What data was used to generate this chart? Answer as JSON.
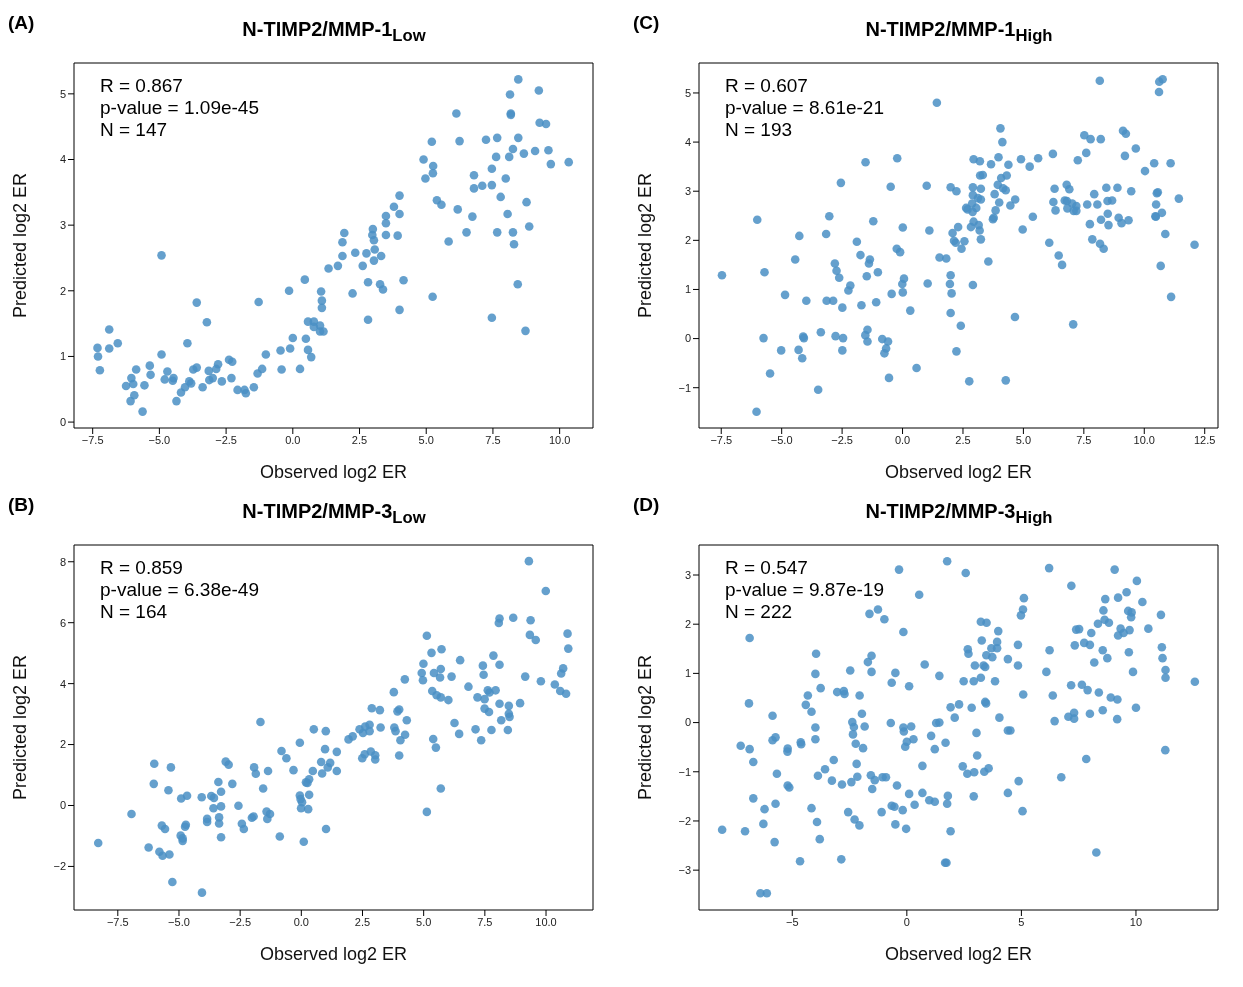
{
  "chart_data": [
    {
      "type": "scatter",
      "title": "N-TIMP2/MMP-1$_{Low}$",
      "xlabel": "Observed log2 ER",
      "ylabel": "Predicted log2 ER",
      "annotations": [
        "(A)",
        "R = 0.867",
        "p-value = 1.09e-45",
        "N = 147"
      ],
      "color": "#4a8fc4",
      "marker": "circle",
      "xlim": [
        -8.2,
        11.25
      ],
      "ylim": [
        -0.09,
        5.47
      ],
      "xticks": [
        {
          "value": -7.5,
          "label": "−7.5"
        },
        {
          "value": -5,
          "label": "−5.0"
        },
        {
          "value": -2.5,
          "label": "−2.5"
        },
        {
          "value": 0,
          "label": "0.0"
        },
        {
          "value": 2.5,
          "label": "2.5"
        },
        {
          "value": 5,
          "label": "5.0"
        },
        {
          "value": 7.5,
          "label": "7.5"
        },
        {
          "value": 10,
          "label": "10.0"
        }
      ],
      "yticks": [
        0,
        1,
        2,
        3,
        4,
        5
      ],
      "x": [
        8.45,
        9.22,
        8.14,
        8.17,
        8.17,
        6.13,
        9.25,
        9.49,
        5.21,
        6.25,
        7.24,
        7.66,
        8.45,
        8.25,
        9.58,
        9.08,
        8.66,
        7.62,
        8.11,
        4.9,
        10.34,
        9.67,
        5.26,
        5.25,
        7.46,
        6.79,
        4.97,
        7.98,
        6.79,
        7.1,
        7.46,
        4.0,
        7.79,
        5.4,
        5.57,
        8.76,
        3.79,
        6.18,
        3.49,
        4.0,
        6.73,
        8.05,
        3.49,
        8.86,
        3.0,
        1.93,
        2.98,
        3.49,
        3.93,
        6.51,
        7.66,
        8.25,
        3.04,
        5.84,
        1.86,
        8.29,
        3.07,
        2.34,
        2.76,
        1.86,
        3.31,
        3.04,
        1.69,
        2.62,
        1.34,
        -4.92,
        0.45,
        2.82,
        4.15,
        3.27,
        3.38,
        8.43,
        -0.14,
        1.06,
        2.24,
        5.24,
        -3.6,
        -1.28,
        1.09,
        1.09,
        4.0,
        2.82,
        7.46,
        -3.22,
        8.72,
        0.57,
        0.79,
        0.79,
        1.02,
        1.02,
        1.15,
        -6.88,
        -6.56,
        -3.95,
        0.0,
        0.49,
        -7.32,
        -6.88,
        -0.1,
        0.57,
        -0.46,
        -7.3,
        -4.92,
        -1.01,
        0.69,
        -7.23,
        -5.87,
        -5.36,
        -5.33,
        -4.7,
        -4.8,
        -4.47,
        -4.5,
        -6.05,
        -5.98,
        -6.25,
        -5.56,
        -5.94,
        -6.08,
        -5.63,
        -4.36,
        -4.19,
        -4.04,
        -3.88,
        -3.81,
        -3.73,
        -3.6,
        -3.38,
        -3.15,
        -3.13,
        -3.0,
        -2.87,
        -2.8,
        -2.66,
        -2.39,
        -2.27,
        -2.3,
        -2.07,
        -1.81,
        -1.76,
        -1.46,
        -1.32,
        -1.15,
        -0.42,
        0.27
      ],
      "values": [
        5.22,
        5.05,
        4.99,
        4.7,
        4.68,
        4.7,
        4.56,
        4.54,
        4.27,
        4.28,
        4.3,
        4.33,
        4.33,
        4.16,
        4.14,
        4.13,
        4.09,
        4.04,
        4.04,
        4.0,
        3.96,
        3.93,
        3.9,
        3.79,
        3.86,
        3.76,
        3.71,
        3.71,
        3.56,
        3.6,
        3.61,
        3.45,
        3.43,
        3.38,
        3.31,
        3.35,
        3.28,
        3.24,
        3.14,
        3.17,
        3.13,
        3.17,
        3.03,
        2.98,
        2.94,
        2.88,
        2.85,
        2.85,
        2.84,
        2.89,
        2.89,
        2.89,
        2.77,
        2.75,
        2.74,
        2.71,
        2.63,
        2.58,
        2.57,
        2.53,
        2.53,
        2.46,
        2.38,
        2.38,
        2.34,
        2.54,
        2.17,
        2.13,
        2.16,
        2.1,
        2.02,
        2.1,
        2.0,
        1.99,
        1.96,
        1.91,
        1.82,
        1.83,
        1.85,
        1.74,
        1.71,
        1.56,
        1.59,
        1.52,
        1.39,
        1.53,
        1.53,
        1.45,
        1.47,
        1.38,
        1.38,
        1.41,
        1.2,
        1.2,
        1.28,
        1.27,
        1.13,
        1.12,
        1.12,
        1.1,
        1.09,
        1.0,
        1.03,
        1.03,
        0.99,
        0.79,
        0.8,
        0.86,
        0.72,
        0.77,
        0.65,
        0.67,
        0.63,
        0.67,
        0.58,
        0.55,
        0.56,
        0.41,
        0.32,
        0.16,
        0.32,
        0.45,
        0.53,
        0.62,
        0.59,
        0.8,
        0.83,
        0.53,
        0.78,
        0.64,
        0.67,
        0.81,
        0.88,
        0.62,
        0.95,
        0.92,
        0.67,
        0.49,
        0.49,
        0.44,
        0.53,
        0.74,
        0.81,
        0.8,
        0.81
      ]
    },
    {
      "type": "scatter",
      "title": "N-TIMP2/MMP-1$_{High}$",
      "xlabel": "Observed log2 ER",
      "ylabel": "Predicted log2 ER",
      "annotations": [
        "(C)",
        "R = 0.607",
        "p-value = 8.61e-21",
        "N = 193"
      ],
      "color": "#4a8fc4",
      "marker": "circle",
      "xlim": [
        -8.42,
        13.05
      ],
      "ylim": [
        -1.82,
        5.61
      ],
      "xticks": [
        {
          "value": -7.5,
          "label": "−7.5"
        },
        {
          "value": -5,
          "label": "−5.0"
        },
        {
          "value": -2.5,
          "label": "−2.5"
        },
        {
          "value": 0,
          "label": "0.0"
        },
        {
          "value": 2.5,
          "label": "2.5"
        },
        {
          "value": 5,
          "label": "5.0"
        },
        {
          "value": 7.5,
          "label": "7.5"
        },
        {
          "value": 10,
          "label": "10.0"
        },
        {
          "value": 12.5,
          "label": "12.5"
        }
      ],
      "yticks": [
        {
          "value": -1,
          "label": "−1"
        },
        0,
        1,
        2,
        3,
        4,
        5
      ],
      "x": [
        8.16,
        10.76,
        10.62,
        10.61,
        1.42,
        4.05,
        4.13,
        9.12,
        9.24,
        7.52,
        7.78,
        8.2,
        9.65,
        7.6,
        6.22,
        9.2,
        -1.53,
        -0.22,
        2.94,
        3.2,
        3.97,
        3.66,
        4.38,
        4.9,
        5.26,
        5.61,
        7.25,
        10.41,
        11.09,
        10.03,
        3.21,
        3.32,
        4.08,
        4.31,
        -2.55,
        -0.49,
        1.0,
        1.99,
        2.23,
        2.91,
        3.24,
        3.94,
        4.16,
        4.27,
        6.29,
        6.79,
        6.9,
        8.43,
        8.89,
        9.46,
        7.93,
        10.52,
        10.56,
        2.91,
        3.12,
        3.24,
        3.81,
        4.66,
        11.43,
        2.88,
        6.24,
        6.71,
        6.8,
        7.02,
        7.19,
        7.64,
        8.06,
        8.48,
        8.67,
        10.49,
        4.0,
        2.63,
        2.69,
        3.05,
        2.9,
        4.46,
        6.33,
        6.82,
        7.08,
        7.19,
        8.49,
        10.73,
        3.85,
        3.77,
        3.74,
        5.39,
        10.46,
        10.48,
        8.94,
        9.35,
        8.21,
        9.06,
        7.75,
        8.52,
        2.94,
        3.15,
        2.83,
        3.19,
        2.3,
        -6.01,
        -3.03,
        -1.21,
        0.01,
        1.11,
        2.07,
        4.97,
        10.87,
        -4.27,
        -3.16,
        3.24,
        2.13,
        2.2,
        2.56,
        -1.89,
        6.07,
        7.85,
        8.17,
        8.32,
        12.08,
        -0.24,
        -0.1,
        2.44,
        -4.44,
        -1.74,
        -1.35,
        -1.39,
        1.53,
        1.81,
        3.55,
        6.46,
        6.6,
        10.68,
        -7.47,
        -5.71,
        -2.8,
        -2.73,
        -2.62,
        -1.48,
        -1.02,
        1.99,
        0.06,
        -0.01,
        1.04,
        1.96,
        2.91,
        -2.16,
        -2.24,
        -4.86,
        -3.98,
        -3.14,
        -2.87,
        -2.49,
        -1.7,
        -1.09,
        -0.45,
        0.01,
        2.03,
        11.11,
        0.32,
        1.99,
        4.65,
        2.41,
        7.06,
        -5.75,
        -4.11,
        -4.08,
        -3.38,
        -2.77,
        -2.46,
        -1.54,
        -1.45,
        -1.45,
        -0.84,
        -0.6,
        -0.68,
        -0.75,
        -5.02,
        -4.3,
        -4.15,
        -2.49,
        2.23,
        -5.48,
        0.58,
        -0.56,
        2.76,
        4.27,
        -3.49,
        -6.04
      ],
      "values": [
        5.25,
        5.28,
        5.23,
        5.02,
        4.8,
        4.28,
        4.0,
        4.23,
        4.17,
        4.14,
        4.06,
        4.06,
        3.87,
        3.78,
        3.76,
        3.72,
        3.59,
        3.67,
        3.65,
        3.61,
        3.69,
        3.55,
        3.54,
        3.65,
        3.5,
        3.67,
        3.63,
        3.57,
        3.57,
        3.41,
        3.32,
        3.33,
        3.27,
        3.32,
        3.17,
        3.09,
        3.11,
        3.08,
        3.0,
        3.08,
        3.05,
        3.13,
        3.06,
        3.02,
        3.05,
        3.13,
        3.04,
        3.07,
        3.07,
        3.0,
        2.94,
        2.96,
        2.98,
        2.92,
        2.86,
        2.83,
        2.94,
        2.83,
        2.85,
        2.75,
        2.78,
        2.81,
        2.8,
        2.75,
        2.7,
        2.73,
        2.73,
        2.8,
        2.81,
        2.73,
        2.77,
        2.66,
        2.63,
        2.66,
        2.58,
        2.71,
        2.61,
        2.65,
        2.6,
        2.6,
        2.54,
        2.56,
        2.61,
        2.46,
        2.43,
        2.48,
        2.49,
        2.48,
        2.46,
        2.41,
        2.42,
        2.35,
        2.33,
        2.31,
        2.38,
        2.31,
        2.27,
        2.2,
        2.27,
        2.42,
        2.49,
        2.39,
        2.26,
        2.2,
        2.15,
        2.22,
        2.13,
        2.09,
        2.13,
        2.02,
        1.99,
        1.95,
        1.98,
        1.97,
        1.95,
        2.02,
        1.93,
        1.83,
        1.91,
        1.83,
        1.76,
        1.83,
        1.61,
        1.7,
        1.61,
        1.53,
        1.65,
        1.63,
        1.57,
        1.69,
        1.5,
        1.48,
        1.29,
        1.35,
        1.53,
        1.38,
        1.24,
        1.27,
        1.35,
        1.29,
        1.22,
        1.11,
        1.12,
        1.11,
        1.09,
        1.08,
        0.98,
        0.89,
        0.77,
        0.77,
        0.77,
        0.63,
        0.68,
        0.74,
        0.91,
        0.94,
        0.92,
        0.85,
        0.57,
        0.52,
        0.44,
        0.26,
        0.29,
        0.01,
        0.04,
        0.01,
        0.13,
        0.05,
        0.01,
        0.07,
        0.18,
        -0.06,
        -0.01,
        -0.06,
        -0.2,
        -0.3,
        -0.24,
        -0.23,
        -0.4,
        -0.24,
        -0.26,
        -0.71,
        -0.6,
        -0.8,
        -0.87,
        -0.85,
        -1.04,
        -1.49
      ]
    },
    {
      "type": "scatter",
      "title": "N-TIMP2/MMP-3$_{Low}$",
      "xlabel": "Observed log2 ER",
      "ylabel": "Predicted log2 ER",
      "annotations": [
        "(B)",
        "R = 0.859",
        "p-value = 6.38e-49",
        "N = 164"
      ],
      "color": "#4a8fc4",
      "marker": "circle",
      "xlim": [
        -9.29,
        11.92
      ],
      "ylim": [
        -3.43,
        8.55
      ],
      "xticks": [
        {
          "value": -7.5,
          "label": "−7.5"
        },
        {
          "value": -5,
          "label": "−5.0"
        },
        {
          "value": -2.5,
          "label": "−2.5"
        },
        {
          "value": 0,
          "label": "0.0"
        },
        {
          "value": 2.5,
          "label": "2.5"
        },
        {
          "value": 5,
          "label": "5.0"
        },
        {
          "value": 7.5,
          "label": "7.5"
        },
        {
          "value": 10,
          "label": "10.0"
        }
      ],
      "yticks": [
        {
          "value": -2,
          "label": "−2"
        },
        0,
        2,
        4,
        6,
        8
      ],
      "x": [
        9.3,
        9.99,
        8.1,
        8.07,
        8.66,
        9.37,
        5.13,
        9.34,
        9.58,
        10.88,
        10.91,
        5.32,
        5.73,
        6.49,
        4.99,
        7.85,
        8.1,
        7.42,
        5.7,
        5.42,
        4.92,
        5.67,
        4.97,
        6.14,
        7.45,
        10.7,
        10.62,
        4.23,
        9.15,
        9.79,
        10.36,
        10.58,
        10.82,
        3.78,
        6.83,
        7.62,
        7.69,
        7.94,
        5.35,
        5.53,
        5.7,
        6.01,
        7.2,
        7.49,
        8.94,
        8.1,
        8.48,
        7.49,
        7.67,
        8.48,
        8.51,
        2.88,
        3.21,
        3.93,
        4.0,
        4.31,
        6.26,
        8.17,
        -1.67,
        0.51,
        1.0,
        2.38,
        2.52,
        2.61,
        2.79,
        2.79,
        3.24,
        3.8,
        3.85,
        4.24,
        4.05,
        6.45,
        7.12,
        7.77,
        8.44,
        7.35,
        5.39,
        5.5,
        1.93,
        2.1,
        -0.06,
        -0.81,
        -0.61,
        0.97,
        1.45,
        2.49,
        2.59,
        2.84,
        3.02,
        3.02,
        4.0,
        -3.09,
        -2.97,
        -1.93,
        -1.86,
        -1.36,
        -0.32,
        0.47,
        0.81,
        0.85,
        1.08,
        1.18,
        1.45,
        -6.01,
        -5.33,
        -6.03,
        -5.43,
        -4.91,
        -4.67,
        -4.07,
        -3.68,
        -3.57,
        -3.39,
        -3.28,
        -2.82,
        -3.59,
        -3.28,
        -1.56,
        -2.57,
        0.19,
        0.32,
        0.25,
        -0.06,
        -0.03,
        0.03,
        -0.01,
        0.28,
        0.32,
        -1.42,
        -1.28,
        -1.39,
        -2.02,
        -1.95,
        -2.43,
        -2.35,
        -3.85,
        -3.85,
        -3.36,
        -3.36,
        -3.28,
        -6.94,
        -5.7,
        -5.57,
        -4.72,
        -4.75,
        -4.93,
        -4.85,
        -4.85,
        -8.3,
        -6.24,
        -5.8,
        -5.67,
        -5.39,
        -5.27,
        -4.06,
        -0.88,
        0.1,
        1.01,
        5.13,
        5.7
      ],
      "values": [
        8.02,
        7.04,
        6.14,
        5.99,
        6.16,
        6.08,
        5.57,
        5.6,
        5.43,
        5.64,
        5.15,
        5.01,
        5.13,
        4.77,
        4.65,
        4.92,
        4.62,
        4.59,
        4.48,
        4.35,
        4.35,
        4.2,
        4.11,
        4.23,
        4.29,
        4.5,
        4.33,
        4.14,
        4.23,
        4.08,
        3.97,
        3.76,
        3.67,
        3.72,
        3.9,
        3.78,
        3.71,
        3.78,
        3.76,
        3.62,
        3.55,
        3.46,
        3.55,
        3.49,
        3.36,
        3.34,
        3.27,
        3.18,
        3.07,
        3.01,
        2.91,
        3.19,
        3.13,
        3.09,
        3.15,
        2.8,
        2.71,
        2.8,
        2.74,
        2.5,
        2.44,
        2.5,
        2.38,
        2.59,
        2.65,
        2.44,
        2.56,
        2.56,
        2.44,
        2.32,
        2.14,
        2.35,
        2.5,
        2.48,
        2.48,
        2.14,
        2.18,
        1.9,
        2.17,
        2.27,
        2.06,
        1.79,
        1.55,
        1.85,
        1.76,
        1.55,
        1.68,
        1.77,
        1.65,
        1.51,
        1.64,
        1.44,
        1.34,
        1.25,
        1.04,
        1.13,
        1.16,
        1.13,
        1.43,
        1.05,
        1.25,
        1.4,
        1.13,
        1.37,
        1.25,
        0.71,
        0.5,
        0.23,
        0.32,
        0.27,
        0.31,
        0.25,
        0.77,
        0.45,
        0.71,
        -0.09,
        -0.03,
        0.56,
        -0.01,
        0.76,
        0.86,
        0.74,
        0.33,
        0.21,
        0.11,
        -0.09,
        -0.12,
        0.35,
        -0.2,
        -0.28,
        -0.44,
        -0.4,
        -0.36,
        -0.6,
        -0.77,
        -0.44,
        -0.54,
        -0.39,
        -0.59,
        -1.04,
        -0.28,
        -0.66,
        -0.77,
        -0.63,
        -0.7,
        -0.99,
        -1.08,
        -1.16,
        -1.23,
        -1.38,
        -1.52,
        -1.65,
        -1.61,
        -2.51,
        -2.86,
        -1.02,
        -1.19,
        -0.77,
        -0.21,
        0.56
      ]
    },
    {
      "type": "scatter",
      "title": "N-TIMP2/MMP-3$_{High}$",
      "xlabel": "Observed log2 ER",
      "ylabel": "Predicted log2 ER",
      "annotations": [
        "(D)",
        "R = 0.547",
        "p-value = 9.87e-19",
        "N = 222"
      ],
      "color": "#4a8fc4",
      "marker": "circle",
      "xlim": [
        -9.07,
        13.58
      ],
      "ylim": [
        -3.81,
        3.61
      ],
      "xticks": [
        {
          "value": -5,
          "label": "−5"
        },
        0,
        5,
        10
      ],
      "yticks": [
        {
          "value": -3,
          "label": "−3"
        },
        {
          "value": -2,
          "label": "−2"
        },
        {
          "value": -1,
          "label": "−1"
        },
        0,
        1,
        2,
        3
      ],
      "x": [
        1.76,
        -0.34,
        2.57,
        6.21,
        9.07,
        10.04,
        7.18,
        0.54,
        9.59,
        9.22,
        8.66,
        10.28,
        5.11,
        5.07,
        4.98,
        8.58,
        9.66,
        9.81,
        9.79,
        11.09,
        -1.63,
        -1.26,
        -0.98,
        3.23,
        3.48,
        8.63,
        8.82,
        8.34,
        9.33,
        9.72,
        10.54,
        7.39,
        7.52,
        8.05,
        9.46,
        9.22,
        -0.15,
        3.99,
        -6.86,
        3.27,
        3.94,
        4.85,
        7.33,
        7.74,
        7.99,
        11.13,
        3.69,
        3.94,
        2.66,
        2.69,
        6.23,
        8.55,
        9.69,
        -3.96,
        -1.54,
        -1.7,
        3.47,
        3.73,
        4.41,
        8.75,
        11.16,
        2.97,
        3.35,
        3.42,
        4.85,
        0.78,
        8.18,
        -2.47,
        11.29,
        -1.54,
        -0.5,
        6.09,
        9.87,
        -3.99,
        1.42,
        3.23,
        2.48,
        2.92,
        3.85,
        11.29,
        12.57,
        -0.66,
        0.1,
        -3.76,
        7.17,
        7.64,
        7.89,
        -3.04,
        -2.72,
        -2.75,
        -2.06,
        -4.32,
        5.08,
        6.37,
        8.38,
        8.9,
        9.19,
        -6.89,
        -4.41,
        -4.16,
        -1.96,
        3.42,
        3.46,
        2.83,
        2.28,
        1.91,
        10.0,
        8.55,
        7.99,
        7.05,
        7.3,
        7.3,
        9.18,
        -5.86,
        2.09,
        4.04,
        6.45,
        -2.38,
        -0.7,
        1.42,
        1.28,
        -3.99,
        -1.84,
        -2.31,
        -0.15,
        0.19,
        -0.13,
        4.41,
        4.52,
        3.04,
        -5.86,
        -5.73,
        -3.99,
        -2.35,
        1.06,
        -4.63,
        -4.61,
        -2.23,
        0.29,
        0.0,
        1.69,
        -7.25,
        -6.86,
        -5.2,
        -5.21,
        -0.07,
        1.22,
        -1.91,
        11.28,
        -6.7,
        -3.19,
        -2.19,
        3.07,
        7.83,
        -5.67,
        -3.57,
        -3.88,
        -3.27,
        -2.83,
        -2.42,
        -2.16,
        -1.57,
        -1.4,
        -1.06,
        -0.91,
        -0.43,
        0.68,
        2.44,
        2.64,
        2.94,
        3.38,
        3.57,
        6.74,
        4.88,
        -5.2,
        -5.13,
        -1.51,
        0.1,
        0.68,
        0.98,
        1.22,
        1.79,
        1.76,
        2.92,
        4.41,
        -6.7,
        -5.73,
        -6.21,
        -4.16,
        -0.66,
        -0.54,
        -0.18,
        0.34,
        -1.1,
        -2.56,
        5.05,
        -3.92,
        -2.28,
        -2.07,
        -6.26,
        -8.06,
        -7.06,
        -0.5,
        -0.03,
        1.91,
        -5.77,
        -3.8,
        8.27,
        -4.66,
        -2.86,
        1.67,
        1.73,
        -6.39,
        -6.11
      ],
      "values": [
        3.28,
        3.11,
        3.04,
        3.14,
        3.11,
        2.88,
        2.78,
        2.6,
        2.65,
        2.54,
        2.51,
        2.45,
        2.53,
        2.3,
        2.18,
        2.28,
        2.27,
        2.24,
        2.14,
        2.19,
        2.21,
        2.3,
        2.1,
        2.05,
        2.03,
        2.09,
        2.03,
        2.01,
        1.91,
        1.88,
        1.91,
        1.89,
        1.9,
        1.82,
        1.82,
        1.77,
        1.84,
        1.86,
        1.72,
        1.67,
        1.64,
        1.58,
        1.57,
        1.62,
        1.58,
        1.53,
        1.51,
        1.51,
        1.49,
        1.4,
        1.47,
        1.47,
        1.43,
        1.4,
        1.36,
        1.23,
        1.37,
        1.33,
        1.29,
        1.31,
        1.31,
        1.16,
        1.16,
        1.13,
        1.16,
        1.18,
        1.22,
        1.06,
        1.07,
        1.03,
        1.01,
        1.03,
        1.03,
        0.99,
        0.95,
        0.91,
        0.84,
        0.84,
        0.84,
        0.91,
        0.83,
        0.81,
        0.74,
        0.7,
        0.76,
        0.77,
        0.66,
        0.62,
        0.58,
        0.64,
        0.55,
        0.55,
        0.57,
        0.55,
        0.61,
        0.51,
        0.47,
        0.39,
        0.36,
        0.22,
        0.18,
        0.42,
        0.39,
        0.3,
        0.37,
        0.31,
        0.3,
        0.25,
        0.18,
        0.12,
        0.2,
        0.08,
        0.07,
        0.14,
        0.1,
        0.1,
        0.03,
        0.01,
        -0.01,
        0.0,
        -0.01,
        -0.1,
        -0.08,
        -0.09,
        -0.1,
        -0.08,
        -0.18,
        -0.16,
        -0.16,
        -0.21,
        -0.36,
        -0.3,
        -0.34,
        -0.24,
        -0.27,
        -0.4,
        -0.44,
        -0.43,
        -0.34,
        -0.39,
        -0.41,
        -0.47,
        -0.54,
        -0.53,
        -0.59,
        -0.49,
        -0.54,
        -0.52,
        -0.56,
        -0.8,
        -0.76,
        -0.84,
        -0.67,
        -0.74,
        -1.04,
        -0.95,
        -1.08,
        -1.18,
        -1.26,
        -1.21,
        -1.1,
        -1.07,
        -1.17,
        -1.11,
        -1.11,
        -1.28,
        -0.88,
        -0.89,
        -1.04,
        -1.01,
        -1.0,
        -0.93,
        -1.11,
        -1.19,
        -1.28,
        -1.32,
        -1.35,
        -1.45,
        -1.43,
        -1.58,
        -1.61,
        -1.49,
        -1.65,
        -1.5,
        -1.43,
        -1.54,
        -1.65,
        -1.76,
        -1.74,
        -1.69,
        -1.71,
        -1.78,
        -1.67,
        -1.82,
        -1.82,
        -1.8,
        -2.02,
        -1.97,
        -2.09,
        -2.06,
        -2.18,
        -2.21,
        -2.07,
        -2.16,
        -2.21,
        -2.43,
        -2.37,
        -2.64,
        -2.82,
        -2.78,
        -2.85,
        -2.85,
        -3.47,
        -3.47
      ]
    }
  ]
}
